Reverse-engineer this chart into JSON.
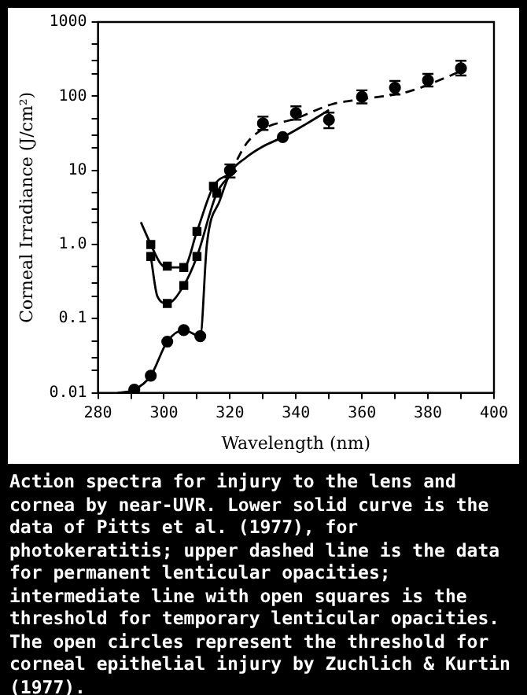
{
  "chart_data": {
    "type": "line",
    "xlabel": "Wavelength (nm)",
    "ylabel": "Corneal Irradiance (J/cm²)",
    "log": "y",
    "xlim": [
      280,
      400
    ],
    "xticks": [
      280,
      {
        "value": 290,
        "label": null
      },
      300,
      {
        "value": 310,
        "label": null
      },
      320,
      {
        "value": 330,
        "label": null
      },
      340,
      {
        "value": 350,
        "label": null
      },
      360,
      {
        "value": 370,
        "label": null
      },
      380,
      {
        "value": 390,
        "label": null
      },
      400
    ],
    "ylim": [
      0.01,
      1000
    ],
    "yticks": [
      0.01,
      {
        "value": 0.02,
        "label": null
      },
      {
        "value": 0.03,
        "label": null
      },
      {
        "value": 0.05,
        "label": null
      },
      0.1,
      {
        "value": 0.2,
        "label": null
      },
      {
        "value": 0.3,
        "label": null
      },
      {
        "value": 0.5,
        "label": null
      },
      {
        "value": 1,
        "label": "1.0"
      },
      {
        "value": 2,
        "label": null
      },
      {
        "value": 3,
        "label": null
      },
      {
        "value": 5,
        "label": null
      },
      10,
      {
        "value": 20,
        "label": null
      },
      {
        "value": 30,
        "label": null
      },
      {
        "value": 50,
        "label": null
      },
      100,
      {
        "value": 200,
        "label": null
      },
      {
        "value": 300,
        "label": null
      },
      {
        "value": 500,
        "label": null
      },
      1000
    ],
    "series": [
      {
        "color": "#000000",
        "line_style": "solid",
        "marker": "none",
        "x": [
          286,
          291,
          296,
          301,
          306,
          311,
          313,
          317,
          320,
          325,
          330,
          336,
          343,
          350
        ],
        "values": [
          0.01,
          0.011,
          0.017,
          0.049,
          0.07,
          0.058,
          1.0,
          4,
          9,
          15,
          21,
          28,
          42,
          65
        ]
      },
      {
        "type": "scatter",
        "color": "#000000",
        "marker": "circle",
        "x": [
          291,
          296,
          301,
          306,
          311,
          336
        ],
        "values": [
          0.011,
          0.017,
          0.049,
          0.07,
          0.058,
          28
        ]
      },
      {
        "color": "#000000",
        "line_style": "solid",
        "marker": "none",
        "x": [
          293,
          296,
          299,
          301,
          306,
          310,
          315,
          320
        ],
        "values": [
          2.0,
          1.0,
          0.55,
          0.49,
          0.49,
          1.5,
          6.1,
          9
        ]
      },
      {
        "type": "scatter",
        "color": "#000000",
        "marker": "square",
        "x": [
          296,
          301,
          306,
          310,
          315
        ],
        "values": [
          1.0,
          0.51,
          0.49,
          1.5,
          6.1
        ]
      },
      {
        "color": "#000000",
        "line_style": "dashed",
        "marker": "none",
        "x": [
          320,
          325,
          330,
          340,
          351,
          360,
          374,
          386,
          391
        ],
        "values": [
          9,
          23,
          36,
          50,
          78,
          91,
          115,
          183,
          230
        ]
      },
      {
        "color": "#000000",
        "line_style": "solid",
        "marker": "none",
        "x": [
          296,
          298,
          301,
          306,
          310,
          316,
          322
        ],
        "values": [
          0.69,
          0.2,
          0.16,
          0.28,
          0.69,
          4.9,
          10
        ]
      },
      {
        "type": "scatter",
        "color": "#000000",
        "marker": "square",
        "x": [
          296,
          301,
          306,
          310,
          316
        ],
        "values": [
          0.69,
          0.16,
          0.28,
          0.69,
          4.9
        ]
      },
      {
        "type": "scatter",
        "color": "#000000",
        "marker": "circle",
        "x": [
          320,
          330,
          340,
          350,
          360,
          370,
          380,
          390
        ],
        "values": [
          10,
          43,
          59,
          48,
          98,
          130,
          164,
          238
        ],
        "errors": [
          [
            8,
            12
          ],
          [
            35,
            53
          ],
          [
            48,
            73
          ],
          [
            37,
            60
          ],
          [
            80,
            120
          ],
          [
            105,
            160
          ],
          [
            135,
            200
          ],
          [
            190,
            300
          ]
        ]
      }
    ],
    "annotations": [
      "Action spectra for injury to the lens and cornea by near-UVR. Lower solid curve is the data of Pitts et al. (1977), for photokeratitis; upper dashed line is the data for permanent lenticular opacities; intermediate line with open squares is the threshold for temporary lenticular opacities. The open circles represent the threshold for corneal epithelial injury by Zuchlich & Kurtin (1977)."
    ]
  }
}
